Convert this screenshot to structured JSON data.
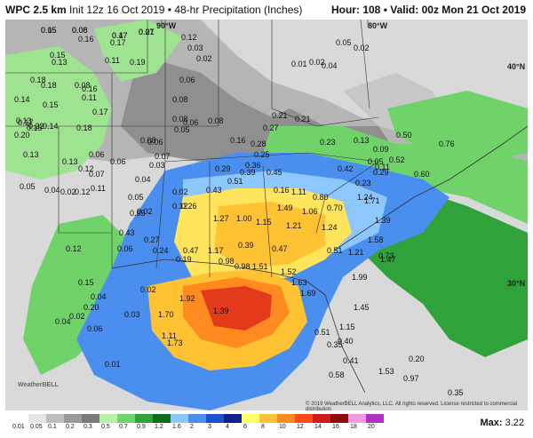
{
  "header": {
    "model": "WPC 2.5 km",
    "init": "Init 12z 16 Oct 2019 • 48-hr Precipitation (Inches)",
    "hour_label": "Hour:",
    "hour_value": "108",
    "valid_label": "Valid:",
    "valid_value": "00z Mon 21 Oct 2019"
  },
  "map": {
    "lon_labels": [
      "90°W",
      "80°W"
    ],
    "lat_labels": [
      "40°N",
      "30°N"
    ],
    "credit": "© 2019 WeatherBELL Analytics, LLC. All rights reserved. License restricted to commercial distribution",
    "logo": "WeatherBELL",
    "values": [
      "0.05",
      "0.06",
      "0.17",
      "0.07",
      "0.12",
      "0.03",
      "0.02",
      "0.16",
      "0.17",
      "0.19",
      "0.15",
      "0.13",
      "0.11",
      "0.01",
      "0.02",
      "0.04",
      "0.05",
      "0.02",
      "0.18",
      "0.08",
      "0.14",
      "0.18",
      "0.17",
      "0.15",
      "0.13",
      "0.16",
      "0.11",
      "0.14",
      "0.15",
      "0.17",
      "0.22",
      "0.20",
      "0.18",
      "0.13",
      "0.13",
      "0.12",
      "0.07",
      "0.06",
      "0.05",
      "0.04",
      "0.02",
      "0.12",
      "0.11",
      "0.06",
      "0.08",
      "0.06",
      "0.07",
      "0.02",
      "0.05",
      "0.04",
      "0.03",
      "0.06",
      "0.08",
      "0.08",
      "0.06",
      "0.05",
      "0.08",
      "0.21",
      "0.27",
      "0.21",
      "0.16",
      "0.28",
      "0.23",
      "0.25",
      "0.36",
      "0.29",
      "0.39",
      "0.45",
      "0.43",
      "0.51",
      "0.47",
      "0.26",
      "0.12",
      "0.13",
      "0.05",
      "0.09",
      "0.11",
      "0.52",
      "0.60",
      "0.50",
      "0.76",
      "0.42",
      "0.29",
      "0.23",
      "0.16",
      "1.11",
      "0.80",
      "1.06",
      "0.70",
      "1.24",
      "1.71",
      "1.39",
      "1.27",
      "1.00",
      "1.15",
      "1.49",
      "1.21",
      "1.24",
      "1.58",
      "1.47",
      "0.73",
      "0.95",
      "0.43",
      "0.02",
      "0.06",
      "0.27",
      "0.24",
      "0.19",
      "0.39",
      "0.47",
      "0.51",
      "1.21",
      "1.17",
      "0.98",
      "0.98",
      "1.51",
      "1.52",
      "1.63",
      "1.69",
      "1.92",
      "1.70",
      "1.39",
      "1.73",
      "1.11",
      "1.99",
      "1.45",
      "1.15",
      "0.40",
      "0.35",
      "0.20",
      "0.12",
      "0.15",
      "0.04",
      "0.20",
      "0.02",
      "0.06",
      "0.04",
      "0.02",
      "0.03",
      "0.01",
      "0.41",
      "0.51",
      "0.58",
      "1.53",
      "0.97",
      "0.35",
      "0.15",
      "0.08",
      "0.47",
      "0.21"
    ],
    "region_labels_note": ""
  },
  "legend": {
    "ticks": [
      "0.01",
      "0.05",
      "0.1",
      "0.2",
      "0.3",
      "0.5",
      "0.7",
      "0.9",
      "1.2",
      "1.6",
      "2",
      "3",
      "4",
      "6",
      "8",
      "10",
      "12",
      "14",
      "16",
      "18",
      "20"
    ],
    "colors": [
      "#ffffff",
      "#e6e6e6",
      "#bdbdbd",
      "#9a9a9a",
      "#7a7a7a",
      "#b8f0a8",
      "#6fd36a",
      "#2fa33a",
      "#0b6b1f",
      "#8ec7ff",
      "#4a8ef0",
      "#1e4fd1",
      "#10218f",
      "#ffff66",
      "#ffc233",
      "#ff8a1f",
      "#ff4a1a",
      "#d11a1a",
      "#8f0a0a",
      "#f09ae0",
      "#b42fc8"
    ],
    "max_label": "Max:",
    "max_value": "3.22"
  }
}
